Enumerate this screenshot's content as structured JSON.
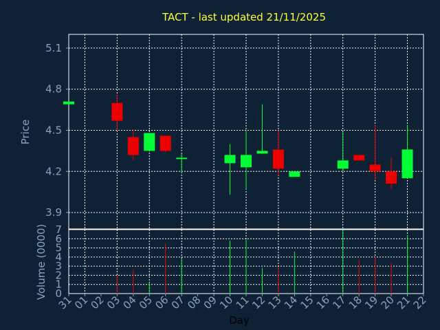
{
  "chart_data": {
    "type": "candlestick",
    "title": "TACT - last updated 21/11/2025",
    "xlabel": "Day",
    "ylabel_price": "Price",
    "ylabel_volume": "Volume (0000)",
    "x_tick_labels": [
      "31",
      "01",
      "02",
      "03",
      "04",
      "05",
      "06",
      "07",
      "08",
      "09",
      "10",
      "11",
      "12",
      "13",
      "14",
      "15",
      "16",
      "17",
      "18",
      "19",
      "20",
      "21",
      "22"
    ],
    "price_ylim": [
      3.78,
      5.2
    ],
    "price_ticks": [
      3.9,
      4.2,
      4.5,
      4.8,
      5.1
    ],
    "price_tick_labels": [
      "3.9",
      "4.2",
      "4.5",
      "4.8",
      "5.1"
    ],
    "volume_ylim": [
      0,
      7
    ],
    "volume_ticks": [
      0,
      1,
      2,
      3,
      4,
      5,
      6,
      7
    ],
    "volume_tick_labels": [
      "0",
      "1",
      "2",
      "3",
      "4",
      "5",
      "6",
      "7"
    ],
    "grid": true,
    "colors": {
      "background": "#0f2135",
      "plot_background": "#0f2135",
      "up": "#00ff33",
      "down": "#ee0000",
      "axis_text": "#8aa2c0",
      "title": "#ffff33",
      "grid": "#ffffff"
    },
    "candles": [
      {
        "day": "31",
        "x": 0,
        "open": 4.69,
        "high": 4.71,
        "low": 4.69,
        "close": 4.71
      },
      {
        "day": "03",
        "x": 3,
        "open": 4.7,
        "high": 4.76,
        "low": 4.5,
        "close": 4.57
      },
      {
        "day": "04",
        "x": 4,
        "open": 4.45,
        "high": 4.51,
        "low": 4.28,
        "close": 4.32
      },
      {
        "day": "05",
        "x": 5,
        "open": 4.35,
        "high": 4.48,
        "low": 4.35,
        "close": 4.48
      },
      {
        "day": "06",
        "x": 6,
        "open": 4.46,
        "high": 4.46,
        "low": 4.34,
        "close": 4.35
      },
      {
        "day": "07",
        "x": 7,
        "open": 4.29,
        "high": 4.33,
        "low": 4.19,
        "close": 4.3
      },
      {
        "day": "10",
        "x": 10,
        "open": 4.26,
        "high": 4.4,
        "low": 4.03,
        "close": 4.32
      },
      {
        "day": "11",
        "x": 11,
        "open": 4.23,
        "high": 4.5,
        "low": 4.07,
        "close": 4.32
      },
      {
        "day": "12",
        "x": 12,
        "open": 4.33,
        "high": 4.69,
        "low": 4.33,
        "close": 4.35
      },
      {
        "day": "13",
        "x": 13,
        "open": 4.36,
        "high": 4.5,
        "low": 4.17,
        "close": 4.22
      },
      {
        "day": "14",
        "x": 14,
        "open": 4.16,
        "high": 4.2,
        "low": 4.16,
        "close": 4.2
      },
      {
        "day": "17",
        "x": 17,
        "open": 4.22,
        "high": 4.49,
        "low": 4.2,
        "close": 4.28
      },
      {
        "day": "18",
        "x": 18,
        "open": 4.32,
        "high": 4.32,
        "low": 4.28,
        "close": 4.28
      },
      {
        "day": "19",
        "x": 19,
        "open": 4.25,
        "high": 4.54,
        "low": 4.14,
        "close": 4.2
      },
      {
        "day": "20",
        "x": 20,
        "open": 4.2,
        "high": 4.3,
        "low": 4.07,
        "close": 4.11
      },
      {
        "day": "21",
        "x": 21,
        "open": 4.15,
        "high": 4.54,
        "low": 4.15,
        "close": 4.36
      }
    ],
    "volumes": [
      {
        "x": 3,
        "value": 2.0,
        "dir": "down"
      },
      {
        "x": 4,
        "value": 2.6,
        "dir": "down"
      },
      {
        "x": 5,
        "value": 1.2,
        "dir": "up"
      },
      {
        "x": 6,
        "value": 5.5,
        "dir": "down"
      },
      {
        "x": 7,
        "value": 3.8,
        "dir": "up"
      },
      {
        "x": 10,
        "value": 5.8,
        "dir": "up"
      },
      {
        "x": 11,
        "value": 5.9,
        "dir": "up"
      },
      {
        "x": 12,
        "value": 2.8,
        "dir": "up"
      },
      {
        "x": 13,
        "value": 2.9,
        "dir": "down"
      },
      {
        "x": 14,
        "value": 4.6,
        "dir": "up"
      },
      {
        "x": 17,
        "value": 7.0,
        "dir": "up"
      },
      {
        "x": 18,
        "value": 3.7,
        "dir": "down"
      },
      {
        "x": 19,
        "value": 4.0,
        "dir": "down"
      },
      {
        "x": 20,
        "value": 3.4,
        "dir": "down"
      },
      {
        "x": 21,
        "value": 6.4,
        "dir": "up"
      }
    ]
  }
}
